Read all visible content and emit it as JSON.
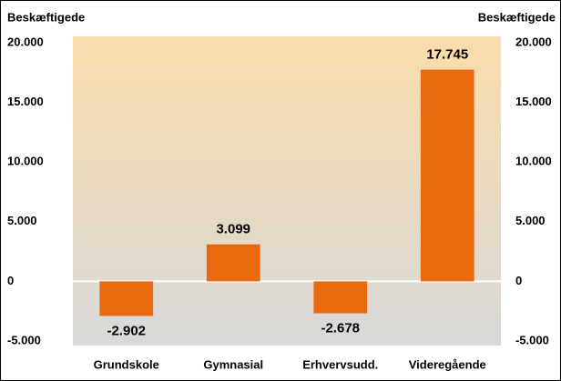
{
  "chart_data": {
    "type": "bar",
    "y_label": "Beskæftigede",
    "y2_label": "Beskæftigede",
    "categories": [
      "Grundskole",
      "Gymnasial",
      "Erhvervsudd.",
      "Videregående"
    ],
    "values": [
      -2902,
      3099,
      -2678,
      17745
    ],
    "value_labels": [
      "-2.902",
      "3.099",
      "-2.678",
      "17.745"
    ],
    "color": "#e8690e",
    "ylim": [
      -5000,
      20000
    ],
    "yticks": [
      {
        "value": -5000,
        "label": "-5.000"
      },
      0,
      {
        "value": 5000,
        "label": "5.000"
      },
      {
        "value": 10000,
        "label": "10.000"
      },
      {
        "value": 15000,
        "label": "15.000"
      },
      {
        "value": 20000,
        "label": "20.000"
      }
    ],
    "y2lim": [
      -5000,
      20000
    ],
    "y2ticks": [
      {
        "value": -5000,
        "label": "-5.000"
      },
      0,
      {
        "value": 5000,
        "label": "5.000"
      },
      {
        "value": 10000,
        "label": "10.000"
      },
      {
        "value": 15000,
        "label": "15.000"
      },
      {
        "value": 20000,
        "label": "20.000"
      }
    ]
  }
}
